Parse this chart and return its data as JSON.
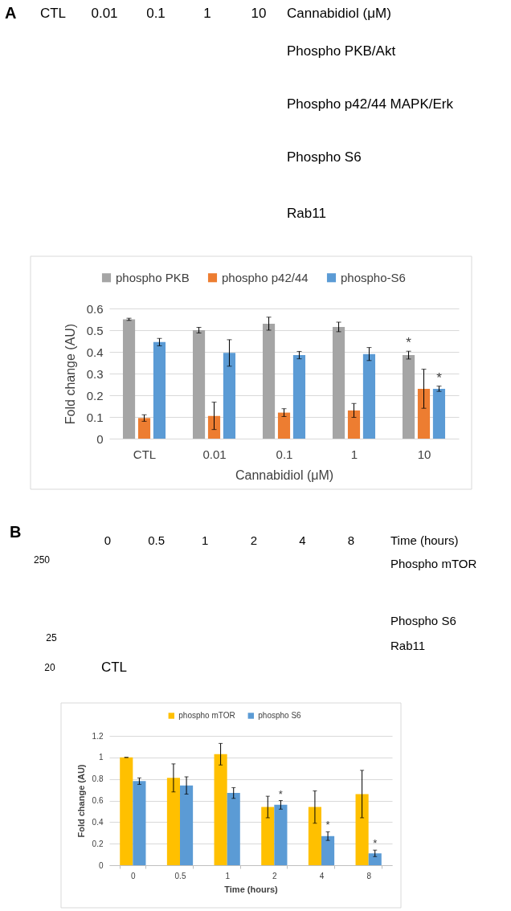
{
  "chart_data": [
    {
      "type": "other",
      "title": "A",
      "categories": [
        "CTL",
        "0.01",
        "0.1",
        "1",
        "10"
      ],
      "xlabel": "Cannabidiol (μM)",
      "annotations": [
        "Phospho PKB/Akt",
        "Phospho p42/44 MAPK/Erk",
        "Phospho S6",
        "Rab11"
      ]
    },
    {
      "type": "bar",
      "categories": [
        "CTL",
        "0.01",
        "0.1",
        "1",
        "10"
      ],
      "xlabel": "Cannabidiol (μM)",
      "ylabel": "Fold change (AU)",
      "ylim": [
        0,
        0.6
      ],
      "yticks": [
        0,
        0.1,
        0.2,
        0.3,
        0.4,
        0.5,
        0.6
      ],
      "grid": "y",
      "legend": "top",
      "series": [
        {
          "name": "phospho PKB",
          "color": "#a5a5a5",
          "values": [
            0.55,
            0.5,
            0.53,
            0.515,
            0.385
          ],
          "errors": [
            0.005,
            0.013,
            0.03,
            0.022,
            0.018
          ],
          "value_labels": [
            null,
            null,
            null,
            null,
            "*"
          ]
        },
        {
          "name": "phospho p42/44",
          "color": "#ed7d31",
          "values": [
            0.095,
            0.105,
            0.12,
            0.13,
            0.23
          ],
          "errors": [
            0.015,
            0.063,
            0.018,
            0.032,
            0.09
          ]
        },
        {
          "name": "phospho-S6",
          "color": "#5b9bd5",
          "values": [
            0.445,
            0.395,
            0.385,
            0.39,
            0.23
          ],
          "errors": [
            0.017,
            0.061,
            0.017,
            0.03,
            0.012
          ],
          "value_labels": [
            null,
            null,
            null,
            null,
            "*"
          ]
        }
      ]
    },
    {
      "type": "other",
      "title": "B",
      "categories": [
        "0",
        "0.5",
        "1",
        "2",
        "4",
        "8"
      ],
      "xlabel": "Time (hours)",
      "annotations": [
        "Phospho mTOR",
        "Phospho S6",
        "Rab11",
        "250",
        "25",
        "20",
        "CTL"
      ]
    },
    {
      "type": "bar",
      "categories": [
        "0",
        "0.5",
        "1",
        "2",
        "4",
        "8"
      ],
      "xlabel": "Time (hours)",
      "ylabel": "Fold change (AU)",
      "ylim": [
        0,
        1.2
      ],
      "yticks": [
        0,
        0.2,
        0.4,
        0.6,
        0.8,
        1,
        1.2
      ],
      "grid": "y",
      "legend": "top",
      "series": [
        {
          "name": "phospho mTOR",
          "color": "#ffc000",
          "values": [
            1.0,
            0.81,
            1.03,
            0.54,
            0.54,
            0.66
          ],
          "errors": [
            0,
            0.13,
            0.1,
            0.1,
            0.15,
            0.22
          ]
        },
        {
          "name": "phospho S6",
          "color": "#5b9bd5",
          "values": [
            0.78,
            0.74,
            0.67,
            0.56,
            0.27,
            0.11
          ],
          "errors": [
            0.03,
            0.08,
            0.05,
            0.04,
            0.04,
            0.03
          ],
          "value_labels": [
            null,
            null,
            null,
            "*",
            "*",
            "*"
          ]
        }
      ]
    }
  ]
}
